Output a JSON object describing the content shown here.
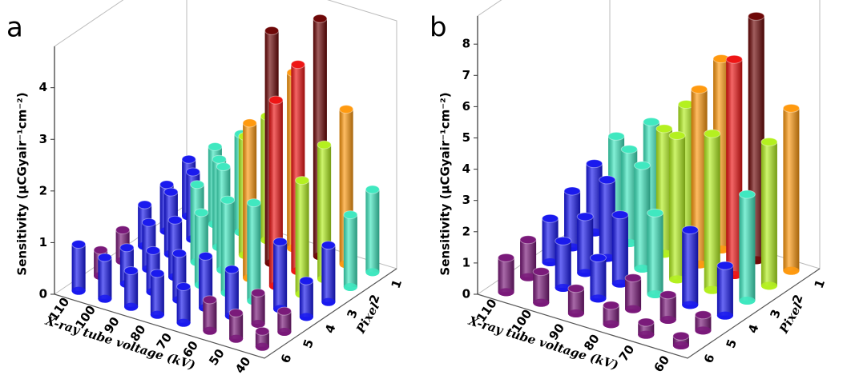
{
  "chart_data": [
    {
      "type": "bar3d",
      "panel_label": "a",
      "zlabel": "Sensitivity (μCGyair⁻¹cm⁻²)",
      "xlabel": "X-ray tube voltage (kV)",
      "ylabel": "Pixel",
      "x_categories": [
        "110",
        "100",
        "90",
        "80",
        "70",
        "60",
        "50",
        "40"
      ],
      "y_categories": [
        "1",
        "2",
        "3",
        "4",
        "5",
        "6"
      ],
      "values": [
        [
          1.1,
          1.5,
          1.9,
          2.4,
          3.4,
          4.6,
          3.0,
          1.6
        ],
        [
          0.9,
          1.3,
          1.7,
          2.3,
          4.5,
          4.0,
          2.6,
          1.4
        ],
        [
          0.8,
          1.2,
          1.5,
          2.0,
          3.0,
          3.6,
          2.2,
          1.1
        ],
        [
          0.6,
          0.9,
          1.1,
          1.4,
          1.8,
          1.9,
          1.3,
          0.7
        ],
        [
          0.5,
          0.7,
          0.8,
          0.9,
          1.0,
          0.9,
          0.6,
          0.4
        ],
        [
          0.9,
          0.8,
          0.7,
          0.8,
          0.7,
          0.6,
          0.5,
          0.3
        ]
      ],
      "zlim": [
        0,
        4.8
      ],
      "zticks": [
        0,
        1,
        2,
        3,
        4
      ],
      "colors": [
        "#7a1a7a",
        "#1a1aee",
        "#40e8c0",
        "#b4f020",
        "#ff9a10",
        "#ee1515",
        "#6e0808"
      ]
    },
    {
      "type": "bar3d",
      "panel_label": "b",
      "zlabel": "Sensitivity (μCGyair⁻¹cm⁻²)",
      "xlabel": "X-ray tube voltage (kV)",
      "ylabel": "Pixel",
      "x_categories": [
        "110",
        "100",
        "90",
        "80",
        "70",
        "60"
      ],
      "y_categories": [
        "1",
        "2",
        "3",
        "4",
        "5",
        "6"
      ],
      "values": [
        [
          2.6,
          3.4,
          4.3,
          6.1,
          7.8,
          5.2
        ],
        [
          2.2,
          3.0,
          4.0,
          5.6,
          6.9,
          4.6
        ],
        [
          1.8,
          2.5,
          3.3,
          4.6,
          5.0,
          3.4
        ],
        [
          1.4,
          1.8,
          2.2,
          2.6,
          2.4,
          1.6
        ],
        [
          1.2,
          1.5,
          1.3,
          1.0,
          0.8,
          0.5
        ],
        [
          1.1,
          1.0,
          0.8,
          0.6,
          0.4,
          0.3
        ]
      ],
      "zlim": [
        0,
        8.9
      ],
      "zticks": [
        0,
        1,
        2,
        3,
        4,
        5,
        6,
        7,
        8
      ],
      "colors": [
        "#7a1a7a",
        "#1a1aee",
        "#40e8c0",
        "#b4f020",
        "#ff9a10",
        "#ee1515",
        "#6e0808"
      ]
    }
  ]
}
